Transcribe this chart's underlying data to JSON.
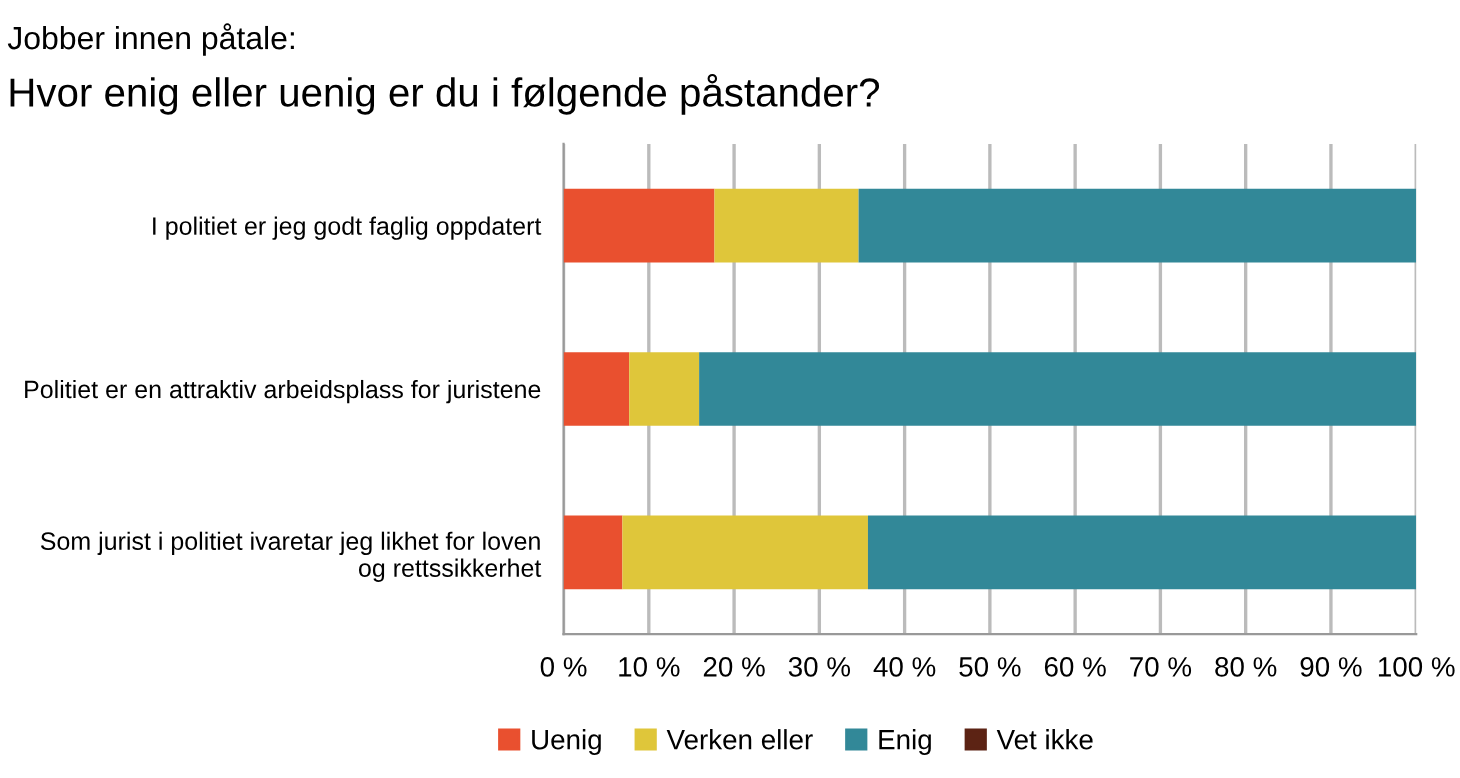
{
  "chart_data": {
    "type": "bar",
    "orientation": "horizontal",
    "stacked": true,
    "title": "Jobber innen påtale:",
    "subtitle": "Hvor enig eller uenig er du i følgende påstander?",
    "categories": [
      "I politiet er jeg godt faglig oppdatert",
      "Politiet er en attraktiv arbeidsplass for juristene",
      "Som jurist i politiet ivaretar jeg likhet for loven\nog rettssikkerhet"
    ],
    "series": [
      {
        "name": "Uenig",
        "color": "#e9502f",
        "values": [
          17.7,
          7.7,
          6.9
        ]
      },
      {
        "name": "Verken eller",
        "color": "#dfc63a",
        "values": [
          16.9,
          8.2,
          28.8
        ]
      },
      {
        "name": "Enig",
        "color": "#328898",
        "values": [
          65.4,
          84.1,
          64.3
        ]
      },
      {
        "name": "Vet ikke",
        "color": "#5c2314",
        "values": [
          0,
          0,
          0
        ]
      }
    ],
    "xlim": [
      0,
      100
    ],
    "xticks": [
      {
        "value": 0,
        "label": "0 %"
      },
      {
        "value": 10,
        "label": "10 %"
      },
      {
        "value": 20,
        "label": "20 %"
      },
      {
        "value": 30,
        "label": "30 %"
      },
      {
        "value": 40,
        "label": "40 %"
      },
      {
        "value": 50,
        "label": "50 %"
      },
      {
        "value": 60,
        "label": "60 %"
      },
      {
        "value": 70,
        "label": "70 %"
      },
      {
        "value": 80,
        "label": "80 %"
      },
      {
        "value": 90,
        "label": "90 %"
      },
      {
        "value": 100,
        "label": "100 %"
      }
    ],
    "grid": "x",
    "legend": "bottom"
  }
}
